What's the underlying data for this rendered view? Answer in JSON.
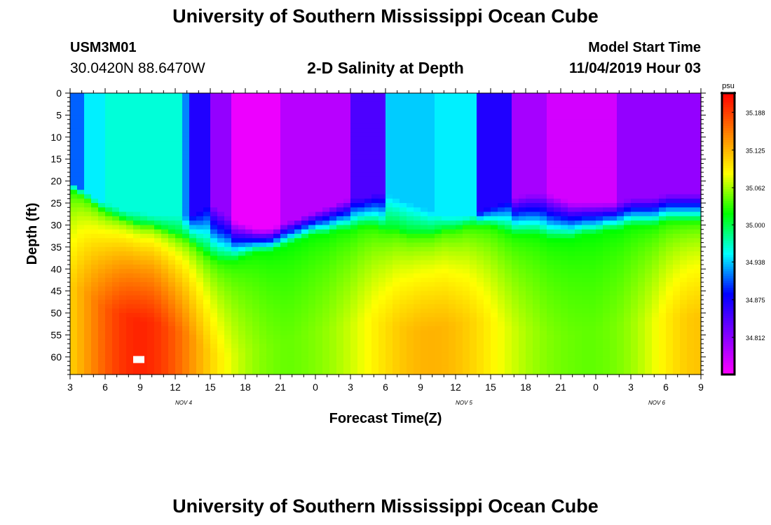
{
  "header": {
    "title": "University of Southern Mississippi Ocean Cube",
    "station_id": "USM3M01",
    "location": "30.0420N 88.6470W",
    "plot_title": "2-D Salinity at Depth",
    "model_start_label": "Model Start Time",
    "model_start_value": "11/04/2019 Hour 03"
  },
  "footer": {
    "title": "University of Southern Mississippi Ocean Cube"
  },
  "colors": {
    "scale": [
      "#ff00ff",
      "#8000ff",
      "#0000ff",
      "#00ffff",
      "#00ff00",
      "#ffff00",
      "#ff8000",
      "#ff0000"
    ]
  },
  "chart_data": {
    "type": "heatmap",
    "xlabel": "Forecast Time(Z)",
    "ylabel": "Depth (ft)",
    "x_ticks": [
      "3",
      "6",
      "9",
      "12",
      "15",
      "18",
      "21",
      "0",
      "3",
      "6",
      "9",
      "12",
      "15",
      "18",
      "21",
      "0",
      "3",
      "6",
      "9"
    ],
    "x_tick_hours": [
      3,
      6,
      9,
      12,
      15,
      18,
      21,
      24,
      27,
      30,
      33,
      36,
      39,
      42,
      45,
      48,
      51,
      54,
      57
    ],
    "date_labels": [
      {
        "label": "NOV 4",
        "hour": 12
      },
      {
        "label": "NOV 5",
        "hour": 36
      },
      {
        "label": "NOV 6",
        "hour": 52.5
      }
    ],
    "xlim_hours": [
      3,
      57
    ],
    "y_ticks": [
      0,
      5,
      10,
      15,
      20,
      25,
      30,
      35,
      40,
      45,
      50,
      55,
      60
    ],
    "ylim": [
      0,
      64
    ],
    "y_inverted": true,
    "colorbar": {
      "unit": "psu",
      "ticks": [
        34.812,
        34.875,
        34.938,
        35.0,
        35.062,
        35.125,
        35.188
      ],
      "range": [
        34.75,
        35.22
      ]
    },
    "salinity_grid": {
      "x_hours": [
        3,
        4,
        5,
        6,
        7,
        8,
        9,
        10,
        11,
        12,
        13,
        14,
        15,
        16,
        17,
        18,
        19,
        20,
        21,
        22,
        23,
        24,
        25,
        26,
        27,
        28,
        29,
        30,
        31,
        32,
        33,
        34,
        35,
        36,
        37,
        38,
        39,
        40,
        41,
        42,
        43,
        44,
        45,
        46,
        47,
        48,
        49,
        50,
        51,
        52,
        53,
        54,
        55,
        56,
        57
      ],
      "boundary_depths": {
        "top": [
          0,
          0,
          0,
          0,
          0,
          0,
          0,
          0,
          0,
          0,
          0,
          0,
          0,
          0,
          0,
          0,
          0,
          0,
          0,
          0,
          0,
          0,
          0,
          0,
          0,
          0,
          0,
          0,
          0,
          0,
          0,
          0,
          0,
          0,
          0,
          0,
          0,
          0,
          0,
          0,
          0,
          0,
          0,
          0,
          0,
          0,
          0,
          0,
          0,
          0,
          0,
          0,
          0,
          0,
          0
        ],
        "b1": [
          20,
          22,
          24,
          25,
          26,
          27,
          27,
          28,
          28,
          28,
          28,
          27,
          25,
          27,
          29,
          30,
          31,
          31,
          30,
          29,
          28,
          27,
          26,
          25,
          24,
          24,
          23,
          23,
          24,
          25,
          26,
          27,
          28,
          28,
          28,
          27,
          26,
          25,
          24,
          23,
          23,
          23,
          24,
          25,
          25,
          25,
          25,
          25,
          24,
          24,
          24,
          23,
          23,
          23,
          23
        ],
        "b2": [
          22,
          23,
          25,
          27,
          28,
          29,
          30,
          30,
          31,
          32,
          33,
          35,
          37,
          38,
          38,
          37,
          36,
          36,
          35,
          34,
          33,
          32,
          32,
          31,
          31,
          30,
          30,
          31,
          31,
          32,
          32,
          32,
          31,
          31,
          30,
          30,
          30,
          31,
          32,
          32,
          32,
          33,
          33,
          33,
          32,
          32,
          31,
          31,
          30,
          30,
          30,
          29,
          29,
          29,
          29
        ]
      },
      "note": "rendered field"
    }
  }
}
